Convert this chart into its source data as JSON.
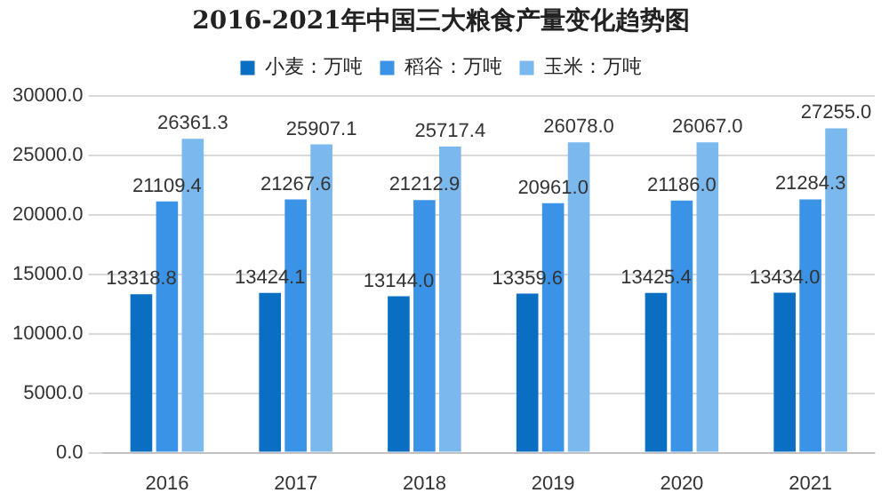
{
  "chart_data": {
    "type": "bar",
    "title": "2016-2021年中国三大粮食产量变化趋势图",
    "categories": [
      "2016",
      "2017",
      "2018",
      "2019",
      "2020",
      "2021"
    ],
    "series": [
      {
        "name": "小麦：万吨",
        "color": "#0a6fc2",
        "values": [
          13318.8,
          13424.1,
          13144.0,
          13359.6,
          13425.4,
          13434.0
        ],
        "value_labels": [
          "13318.8",
          "13424.1",
          "13144.0",
          "13359.6",
          "13425.4",
          "13434.0"
        ]
      },
      {
        "name": "稻谷：万吨",
        "color": "#3a93e6",
        "values": [
          21109.4,
          21267.6,
          21212.9,
          20961.0,
          21186.0,
          21284.3
        ],
        "value_labels": [
          "21109.4",
          "21267.6",
          "21212.9",
          "20961.0",
          "21186.0",
          "21284.3"
        ]
      },
      {
        "name": "玉米：万吨",
        "color": "#7ab8ee",
        "values": [
          26361.3,
          25907.1,
          25717.4,
          26078.0,
          26067.0,
          27255.0
        ],
        "value_labels": [
          "26361.3",
          "25907.1",
          "25717.4",
          "26078.0",
          "26067.0",
          "27255.0"
        ]
      }
    ],
    "ylim": [
      0,
      30000
    ],
    "yticks": [
      {
        "value": 0,
        "label": "0.0"
      },
      {
        "value": 5000,
        "label": "5000.0"
      },
      {
        "value": 10000,
        "label": "10000.0"
      },
      {
        "value": 15000,
        "label": "15000.0"
      },
      {
        "value": 20000,
        "label": "20000.0"
      },
      {
        "value": 25000,
        "label": "25000.0"
      },
      {
        "value": 30000,
        "label": "30000.0"
      }
    ],
    "grid": "y",
    "legend": "top"
  }
}
